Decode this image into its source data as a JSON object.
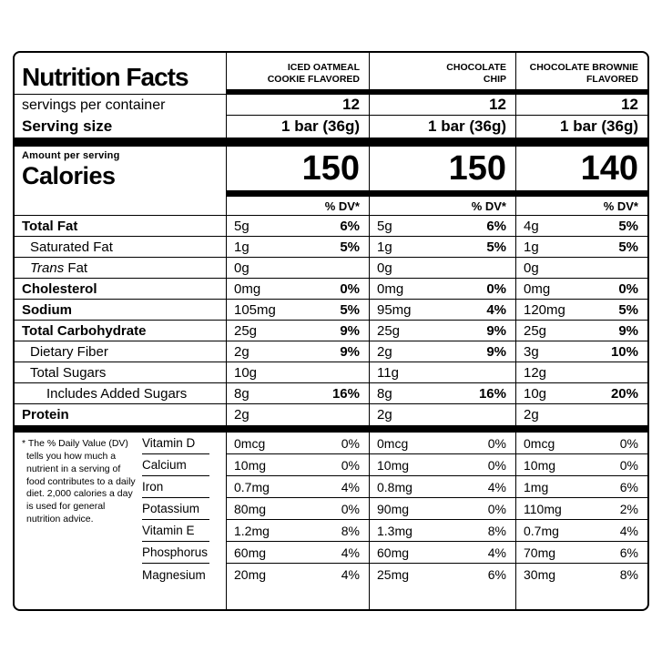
{
  "label": {
    "title": "Nutrition Facts",
    "servings_text": "servings per container",
    "serving_size_text": "Serving size",
    "amount_per_serving": "Amount per serving",
    "calories_text": "Calories",
    "dv_header": "% DV*",
    "footnote": "* The % Daily Value (DV) tells you how much a nutrient in a serving of food contributes to a daily diet. 2,000 calories a day is used for general nutrition advice."
  },
  "products": [
    {
      "name": "Iced Oatmeal\nCookie Flavored",
      "servings": "12",
      "serving_size": "1 bar (36g)",
      "calories": "150"
    },
    {
      "name": "Chocolate\nChip",
      "servings": "12",
      "serving_size": "1 bar (36g)",
      "calories": "150"
    },
    {
      "name": "Chocolate Brownie\nFlavored",
      "servings": "12",
      "serving_size": "1 bar (36g)",
      "calories": "140"
    }
  ],
  "nutrients": [
    {
      "label": "Total Fat",
      "bold": true,
      "indent": 0,
      "values": [
        [
          "5g",
          "6%"
        ],
        [
          "5g",
          "6%"
        ],
        [
          "4g",
          "5%"
        ]
      ]
    },
    {
      "label": "Saturated Fat",
      "bold": false,
      "indent": 1,
      "values": [
        [
          "1g",
          "5%"
        ],
        [
          "1g",
          "5%"
        ],
        [
          "1g",
          "5%"
        ]
      ]
    },
    {
      "label": "Trans Fat",
      "bold": false,
      "indent": 1,
      "italic_words": 1,
      "values": [
        [
          "0g",
          ""
        ],
        [
          "0g",
          ""
        ],
        [
          "0g",
          ""
        ]
      ]
    },
    {
      "label": "Cholesterol",
      "bold": true,
      "indent": 0,
      "values": [
        [
          "0mg",
          "0%"
        ],
        [
          "0mg",
          "0%"
        ],
        [
          "0mg",
          "0%"
        ]
      ]
    },
    {
      "label": "Sodium",
      "bold": true,
      "indent": 0,
      "values": [
        [
          "105mg",
          "5%"
        ],
        [
          "95mg",
          "4%"
        ],
        [
          "120mg",
          "5%"
        ]
      ]
    },
    {
      "label": "Total Carbohydrate",
      "bold": true,
      "indent": 0,
      "values": [
        [
          "25g",
          "9%"
        ],
        [
          "25g",
          "9%"
        ],
        [
          "25g",
          "9%"
        ]
      ]
    },
    {
      "label": "Dietary Fiber",
      "bold": false,
      "indent": 1,
      "values": [
        [
          "2g",
          "9%"
        ],
        [
          "2g",
          "9%"
        ],
        [
          "3g",
          "10%"
        ]
      ]
    },
    {
      "label": "Total Sugars",
      "bold": false,
      "indent": 1,
      "values": [
        [
          "10g",
          ""
        ],
        [
          "11g",
          ""
        ],
        [
          "12g",
          ""
        ]
      ]
    },
    {
      "label": "Includes Added Sugars",
      "bold": false,
      "indent": 2,
      "values": [
        [
          "8g",
          "16%"
        ],
        [
          "8g",
          "16%"
        ],
        [
          "10g",
          "20%"
        ]
      ]
    },
    {
      "label": "Protein",
      "bold": true,
      "indent": 0,
      "values": [
        [
          "2g",
          ""
        ],
        [
          "2g",
          ""
        ],
        [
          "2g",
          ""
        ]
      ]
    }
  ],
  "vitamins": [
    {
      "label": "Vitamin D",
      "values": [
        [
          "0mcg",
          "0%"
        ],
        [
          "0mcg",
          "0%"
        ],
        [
          "0mcg",
          "0%"
        ]
      ]
    },
    {
      "label": "Calcium",
      "values": [
        [
          "10mg",
          "0%"
        ],
        [
          "10mg",
          "0%"
        ],
        [
          "10mg",
          "0%"
        ]
      ]
    },
    {
      "label": "Iron",
      "values": [
        [
          "0.7mg",
          "4%"
        ],
        [
          "0.8mg",
          "4%"
        ],
        [
          "1mg",
          "6%"
        ]
      ]
    },
    {
      "label": "Potassium",
      "values": [
        [
          "80mg",
          "0%"
        ],
        [
          "90mg",
          "0%"
        ],
        [
          "110mg",
          "2%"
        ]
      ]
    },
    {
      "label": "Vitamin E",
      "values": [
        [
          "1.2mg",
          "8%"
        ],
        [
          "1.3mg",
          "8%"
        ],
        [
          "0.7mg",
          "4%"
        ]
      ]
    },
    {
      "label": "Phosphorus",
      "values": [
        [
          "60mg",
          "4%"
        ],
        [
          "60mg",
          "4%"
        ],
        [
          "70mg",
          "6%"
        ]
      ]
    },
    {
      "label": "Magnesium",
      "values": [
        [
          "20mg",
          "4%"
        ],
        [
          "25mg",
          "6%"
        ],
        [
          "30mg",
          "8%"
        ]
      ]
    }
  ]
}
